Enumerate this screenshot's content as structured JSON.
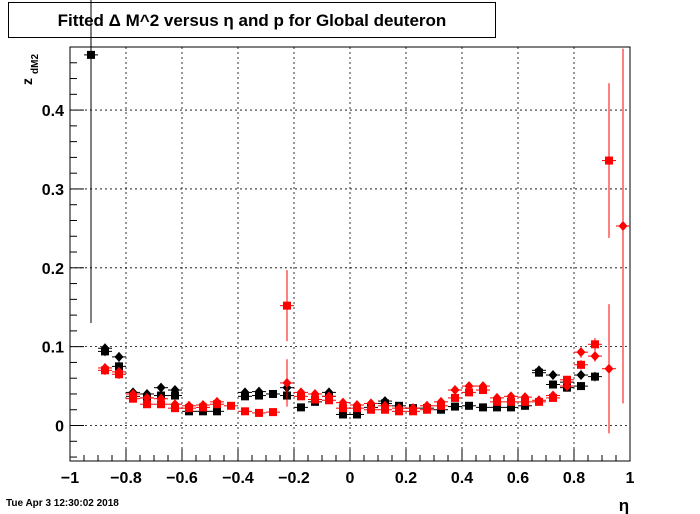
{
  "title": "Fitted Δ M^2 versus η and p for Global deuteron",
  "footer": "Tue Apr  3 12:30:02 2018",
  "chart_data": {
    "type": "scatter",
    "xlabel": "η",
    "ylabel": "z",
    "ylabel_sub": "dM2",
    "xlim": [
      -1,
      1
    ],
    "ylim": [
      -0.045,
      0.48
    ],
    "x_ticks": [
      "−1",
      "−0.8",
      "−0.6",
      "−0.4",
      "−0.2",
      "0",
      "0.2",
      "0.4",
      "0.6",
      "0.8",
      "1"
    ],
    "x_tick_values": [
      -1,
      -0.8,
      -0.6,
      -0.4,
      -0.2,
      0,
      0.2,
      0.4,
      0.6,
      0.8,
      1
    ],
    "y_ticks": [
      "0",
      "0.1",
      "0.2",
      "0.3",
      "0.4"
    ],
    "y_tick_values": [
      0,
      0.1,
      0.2,
      0.3,
      0.4
    ],
    "grid": true,
    "colors": {
      "black": "#000000",
      "red": "#ff0000"
    },
    "series": [
      {
        "marker": "square",
        "color": "#000000",
        "points": [
          {
            "x": -0.925,
            "y": 0.47,
            "err": 0.34
          },
          {
            "x": -0.875,
            "y": 0.094,
            "err": 0.006
          },
          {
            "x": -0.825,
            "y": 0.075,
            "err": 0.006
          },
          {
            "x": -0.775,
            "y": 0.037,
            "err": 0.004
          },
          {
            "x": -0.725,
            "y": 0.035,
            "err": 0.004
          },
          {
            "x": -0.675,
            "y": 0.038,
            "err": 0.004
          },
          {
            "x": -0.625,
            "y": 0.038,
            "err": 0.004
          },
          {
            "x": -0.575,
            "y": 0.018,
            "err": 0.004
          },
          {
            "x": -0.525,
            "y": 0.018,
            "err": 0.004
          },
          {
            "x": -0.475,
            "y": 0.018,
            "err": 0.004
          },
          {
            "x": -0.375,
            "y": 0.037,
            "err": 0.004
          },
          {
            "x": -0.325,
            "y": 0.038,
            "err": 0.004
          },
          {
            "x": -0.275,
            "y": 0.04,
            "err": 0.004
          },
          {
            "x": -0.225,
            "y": 0.038,
            "err": 0.004
          },
          {
            "x": -0.175,
            "y": 0.023,
            "err": 0.004
          },
          {
            "x": -0.125,
            "y": 0.03,
            "err": 0.004
          },
          {
            "x": -0.075,
            "y": 0.037,
            "err": 0.004
          },
          {
            "x": -0.025,
            "y": 0.014,
            "err": 0.004
          },
          {
            "x": 0.025,
            "y": 0.014,
            "err": 0.004
          },
          {
            "x": 0.075,
            "y": 0.023,
            "err": 0.004
          },
          {
            "x": 0.125,
            "y": 0.028,
            "err": 0.004
          },
          {
            "x": 0.175,
            "y": 0.025,
            "err": 0.004
          },
          {
            "x": 0.225,
            "y": 0.022,
            "err": 0.004
          },
          {
            "x": 0.275,
            "y": 0.022,
            "err": 0.004
          },
          {
            "x": 0.325,
            "y": 0.02,
            "err": 0.004
          },
          {
            "x": 0.375,
            "y": 0.024,
            "err": 0.004
          },
          {
            "x": 0.425,
            "y": 0.025,
            "err": 0.004
          },
          {
            "x": 0.475,
            "y": 0.023,
            "err": 0.004
          },
          {
            "x": 0.525,
            "y": 0.023,
            "err": 0.004
          },
          {
            "x": 0.575,
            "y": 0.023,
            "err": 0.004
          },
          {
            "x": 0.625,
            "y": 0.025,
            "err": 0.004
          },
          {
            "x": 0.675,
            "y": 0.067,
            "err": 0.005
          },
          {
            "x": 0.725,
            "y": 0.052,
            "err": 0.005
          },
          {
            "x": 0.775,
            "y": 0.048,
            "err": 0.005
          },
          {
            "x": 0.825,
            "y": 0.05,
            "err": 0.005
          },
          {
            "x": 0.875,
            "y": 0.062,
            "err": 0.006
          }
        ]
      },
      {
        "marker": "diamond",
        "color": "#000000",
        "points": [
          {
            "x": -0.875,
            "y": 0.098,
            "err": 0.006
          },
          {
            "x": -0.825,
            "y": 0.087,
            "err": 0.006
          },
          {
            "x": -0.775,
            "y": 0.042,
            "err": 0.004
          },
          {
            "x": -0.725,
            "y": 0.04,
            "err": 0.004
          },
          {
            "x": -0.675,
            "y": 0.048,
            "err": 0.004
          },
          {
            "x": -0.625,
            "y": 0.045,
            "err": 0.004
          },
          {
            "x": -0.375,
            "y": 0.042,
            "err": 0.004
          },
          {
            "x": -0.325,
            "y": 0.043,
            "err": 0.004
          },
          {
            "x": -0.225,
            "y": 0.048,
            "err": 0.004
          },
          {
            "x": -0.075,
            "y": 0.042,
            "err": 0.004
          },
          {
            "x": 0.125,
            "y": 0.031,
            "err": 0.004
          },
          {
            "x": 0.675,
            "y": 0.07,
            "err": 0.005
          },
          {
            "x": 0.725,
            "y": 0.064,
            "err": 0.005
          },
          {
            "x": 0.775,
            "y": 0.055,
            "err": 0.005
          },
          {
            "x": 0.825,
            "y": 0.064,
            "err": 0.005
          }
        ]
      },
      {
        "marker": "square",
        "color": "#ff0000",
        "points": [
          {
            "x": -0.875,
            "y": 0.07,
            "err": 0.006
          },
          {
            "x": -0.825,
            "y": 0.065,
            "err": 0.006
          },
          {
            "x": -0.775,
            "y": 0.034,
            "err": 0.004
          },
          {
            "x": -0.725,
            "y": 0.027,
            "err": 0.004
          },
          {
            "x": -0.675,
            "y": 0.027,
            "err": 0.004
          },
          {
            "x": -0.625,
            "y": 0.022,
            "err": 0.004
          },
          {
            "x": -0.575,
            "y": 0.022,
            "err": 0.004
          },
          {
            "x": -0.525,
            "y": 0.023,
            "err": 0.004
          },
          {
            "x": -0.475,
            "y": 0.027,
            "err": 0.004
          },
          {
            "x": -0.425,
            "y": 0.025,
            "err": 0.004
          },
          {
            "x": -0.375,
            "y": 0.018,
            "err": 0.004
          },
          {
            "x": -0.325,
            "y": 0.016,
            "err": 0.004
          },
          {
            "x": -0.275,
            "y": 0.017,
            "err": 0.004
          },
          {
            "x": -0.225,
            "y": 0.152,
            "err": 0.045
          },
          {
            "x": -0.175,
            "y": 0.037,
            "err": 0.004
          },
          {
            "x": -0.125,
            "y": 0.033,
            "err": 0.004
          },
          {
            "x": -0.075,
            "y": 0.032,
            "err": 0.004
          },
          {
            "x": -0.025,
            "y": 0.022,
            "err": 0.004
          },
          {
            "x": 0.025,
            "y": 0.022,
            "err": 0.004
          },
          {
            "x": 0.075,
            "y": 0.02,
            "err": 0.004
          },
          {
            "x": 0.125,
            "y": 0.02,
            "err": 0.004
          },
          {
            "x": 0.175,
            "y": 0.018,
            "err": 0.004
          },
          {
            "x": 0.225,
            "y": 0.018,
            "err": 0.004
          },
          {
            "x": 0.275,
            "y": 0.02,
            "err": 0.004
          },
          {
            "x": 0.325,
            "y": 0.025,
            "err": 0.004
          },
          {
            "x": 0.375,
            "y": 0.035,
            "err": 0.004
          },
          {
            "x": 0.425,
            "y": 0.042,
            "err": 0.004
          },
          {
            "x": 0.475,
            "y": 0.045,
            "err": 0.004
          },
          {
            "x": 0.525,
            "y": 0.03,
            "err": 0.004
          },
          {
            "x": 0.575,
            "y": 0.03,
            "err": 0.004
          },
          {
            "x": 0.625,
            "y": 0.03,
            "err": 0.004
          },
          {
            "x": 0.675,
            "y": 0.03,
            "err": 0.004
          },
          {
            "x": 0.725,
            "y": 0.035,
            "err": 0.004
          },
          {
            "x": 0.775,
            "y": 0.058,
            "err": 0.005
          },
          {
            "x": 0.825,
            "y": 0.077,
            "err": 0.006
          },
          {
            "x": 0.875,
            "y": 0.103,
            "err": 0.008
          },
          {
            "x": 0.925,
            "y": 0.336,
            "err": 0.098
          }
        ]
      },
      {
        "marker": "diamond",
        "color": "#ff0000",
        "points": [
          {
            "x": -0.875,
            "y": 0.073,
            "err": 0.006
          },
          {
            "x": -0.825,
            "y": 0.068,
            "err": 0.006
          },
          {
            "x": -0.775,
            "y": 0.04,
            "err": 0.004
          },
          {
            "x": -0.725,
            "y": 0.035,
            "err": 0.004
          },
          {
            "x": -0.675,
            "y": 0.034,
            "err": 0.004
          },
          {
            "x": -0.625,
            "y": 0.027,
            "err": 0.004
          },
          {
            "x": -0.575,
            "y": 0.025,
            "err": 0.004
          },
          {
            "x": -0.525,
            "y": 0.026,
            "err": 0.004
          },
          {
            "x": -0.475,
            "y": 0.03,
            "err": 0.004
          },
          {
            "x": -0.225,
            "y": 0.054,
            "err": 0.03
          },
          {
            "x": -0.175,
            "y": 0.042,
            "err": 0.004
          },
          {
            "x": -0.125,
            "y": 0.04,
            "err": 0.004
          },
          {
            "x": -0.075,
            "y": 0.037,
            "err": 0.004
          },
          {
            "x": -0.025,
            "y": 0.029,
            "err": 0.004
          },
          {
            "x": 0.025,
            "y": 0.026,
            "err": 0.004
          },
          {
            "x": 0.075,
            "y": 0.028,
            "err": 0.004
          },
          {
            "x": 0.125,
            "y": 0.025,
            "err": 0.004
          },
          {
            "x": 0.175,
            "y": 0.022,
            "err": 0.004
          },
          {
            "x": 0.225,
            "y": 0.022,
            "err": 0.004
          },
          {
            "x": 0.275,
            "y": 0.025,
            "err": 0.004
          },
          {
            "x": 0.325,
            "y": 0.03,
            "err": 0.004
          },
          {
            "x": 0.375,
            "y": 0.045,
            "err": 0.004
          },
          {
            "x": 0.425,
            "y": 0.05,
            "err": 0.004
          },
          {
            "x": 0.475,
            "y": 0.05,
            "err": 0.004
          },
          {
            "x": 0.525,
            "y": 0.035,
            "err": 0.004
          },
          {
            "x": 0.575,
            "y": 0.037,
            "err": 0.004
          },
          {
            "x": 0.625,
            "y": 0.036,
            "err": 0.004
          },
          {
            "x": 0.675,
            "y": 0.032,
            "err": 0.004
          },
          {
            "x": 0.725,
            "y": 0.038,
            "err": 0.004
          },
          {
            "x": 0.775,
            "y": 0.05,
            "err": 0.005
          },
          {
            "x": 0.825,
            "y": 0.093,
            "err": 0.007
          },
          {
            "x": 0.875,
            "y": 0.088,
            "err": 0.007
          },
          {
            "x": 0.925,
            "y": 0.072,
            "err": 0.082
          },
          {
            "x": 0.975,
            "y": 0.253,
            "err": 0.225
          }
        ]
      }
    ]
  }
}
